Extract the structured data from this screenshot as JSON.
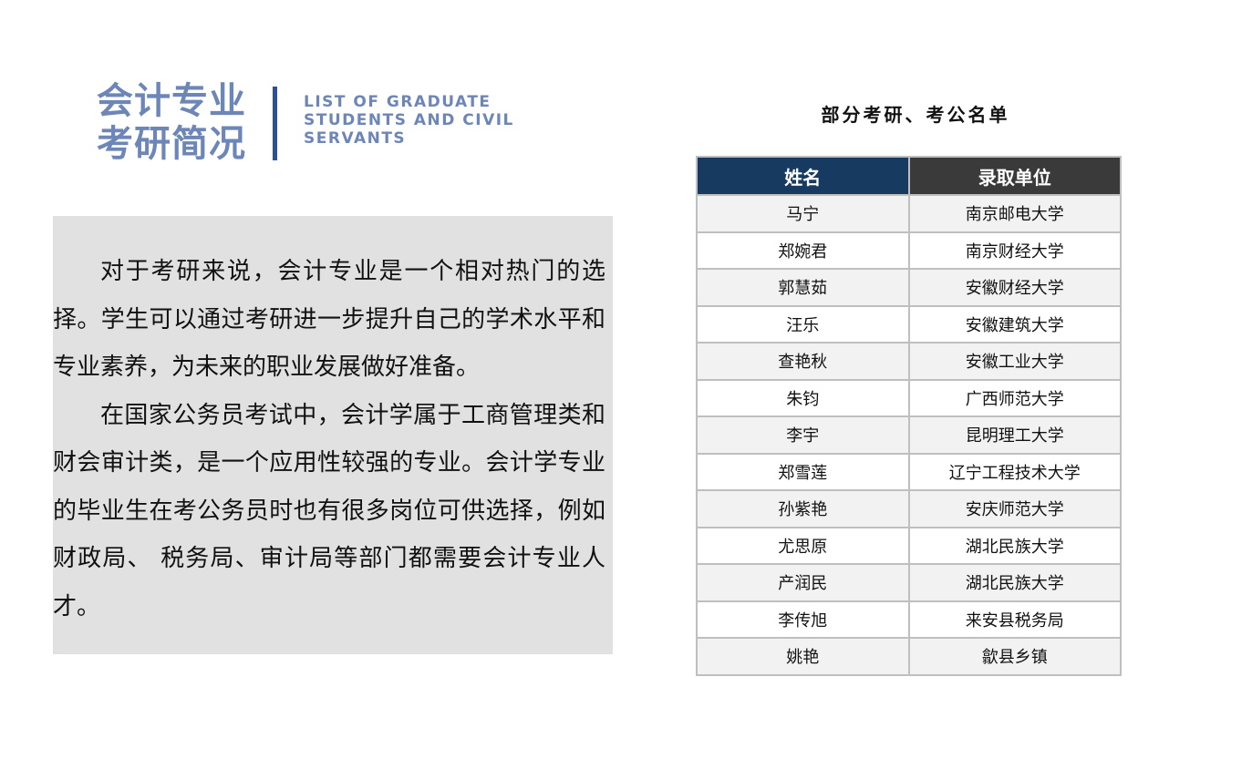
{
  "logo": {
    "cn_line1": "会计专业",
    "cn_line2": "考研简况",
    "en": "LIST OF GRADUATE STUDENTS AND CIVIL SERVANTS"
  },
  "intro": {
    "paragraphs": [
      "对于考研来说，会计专业是一个相对热门的选择。学生可以通过考研进一步提升自己的学术水平和专业素养，为未来的职业发展做好准备。",
      "在国家公务员考试中，会计学属于工商管理类和财会审计类，是一个应用性较强的专业。会计学专业的毕业生在考公务员时也有很多岗位可供选择，例如财政局、 税务局、审计局等部门都需要会计专业人才。"
    ]
  },
  "table": {
    "title": "部分考研、考公名单",
    "headers": [
      "姓名",
      "录取单位"
    ],
    "header_colors": [
      "#173a60",
      "#3a3a3a"
    ],
    "rows": [
      [
        "马宁",
        "南京邮电大学"
      ],
      [
        "郑婉君",
        "南京财经大学"
      ],
      [
        "郭慧茹",
        "安徽财经大学"
      ],
      [
        "汪乐",
        "安徽建筑大学"
      ],
      [
        "查艳秋",
        "安徽工业大学"
      ],
      [
        "朱钧",
        "广西师范大学"
      ],
      [
        "李宇",
        "昆明理工大学"
      ],
      [
        "郑雪莲",
        "辽宁工程技术大学"
      ],
      [
        "孙紫艳",
        "安庆师范大学"
      ],
      [
        "尤思原",
        "湖北民族大学"
      ],
      [
        "产润民",
        "湖北民族大学"
      ],
      [
        "李传旭",
        "来安县税务局"
      ],
      [
        "姚艳",
        "歙县乡镇"
      ]
    ]
  }
}
